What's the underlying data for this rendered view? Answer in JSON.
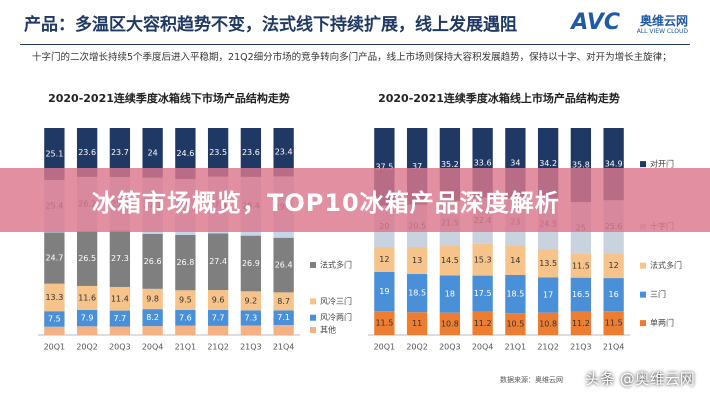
{
  "slide": {
    "title": "产品：多温区大容积趋势不变，法式线下持续扩展，线上发展遇阻",
    "subtitle": "十字门的二次增长持续5个季度后进入平稳期，21Q2细分市场的竞争转向多门产品，线上市场则保持大容积发展趋势，保持以十字、对开为增长主旋律；",
    "logo": "AVC",
    "logo_name": "奥维云网",
    "logo_sub": "ALL VIEW CLOUD",
    "banner": "冰箱市场概览，TOP10冰箱产品深度解析",
    "source": "数据来源：奥维云网",
    "watermark": "头条 @奥维云网"
  },
  "chart_data": [
    {
      "type": "stacked-bar",
      "title": "2020-2021连续季度冰箱线下市场产品结构走势",
      "categories": [
        "20Q1",
        "20Q2",
        "20Q3",
        "20Q4",
        "21Q1",
        "21Q2",
        "21Q3",
        "21Q4"
      ],
      "ylim": [
        0,
        100
      ],
      "series": [
        {
          "name": "其他",
          "color": "#f4b183",
          "values": [
            4.0,
            4.2,
            4.1,
            4.3,
            4.5,
            4.4,
            4.6,
            4.8
          ]
        },
        {
          "name": "风冷两门",
          "color": "#4a90d9",
          "values": [
            7.5,
            7.9,
            7.7,
            8.2,
            7.6,
            7.7,
            7.3,
            7.1
          ]
        },
        {
          "name": "风冷三门",
          "color": "#f6c38a",
          "values": [
            13.3,
            11.6,
            11.4,
            9.8,
            9.5,
            9.6,
            9.2,
            8.7
          ]
        },
        {
          "name": "法式多门",
          "color": "#7f7f7f",
          "values": [
            24.7,
            26.5,
            27.3,
            26.6,
            26.8,
            27.4,
            26.9,
            26.4
          ]
        },
        {
          "color": "#c5d5ea",
          "values": [
            25.4,
            26.2,
            25.8,
            27.1,
            27.0,
            27.4,
            28.4,
            29.6
          ]
        },
        {
          "color": "#1f3864",
          "values": [
            25.1,
            23.6,
            23.7,
            24.0,
            24.6,
            23.5,
            23.6,
            23.4
          ]
        }
      ]
    },
    {
      "type": "stacked-bar",
      "title": "2020-2021连续季度冰箱线上市场产品结构走势",
      "categories": [
        "20Q1",
        "20Q2",
        "20Q3",
        "20Q4",
        "21Q1",
        "21Q2",
        "21Q3",
        "21Q4"
      ],
      "ylim": [
        0,
        100
      ],
      "series": [
        {
          "name": "单两门",
          "color": "#ed7d31",
          "values": [
            11.5,
            11.0,
            10.8,
            11.2,
            10.5,
            10.8,
            11.2,
            11.5
          ]
        },
        {
          "name": "三门",
          "color": "#4a90d9",
          "values": [
            19.0,
            18.5,
            18.0,
            17.5,
            18.5,
            17.0,
            16.5,
            16.0
          ]
        },
        {
          "name": "法式多门",
          "color": "#f6c38a",
          "values": [
            12.0,
            13.0,
            14.5,
            15.3,
            14.0,
            13.5,
            11.5,
            12.0
          ]
        },
        {
          "name": "十字门",
          "color": "#c9d3e0",
          "values": [
            20.0,
            20.5,
            21.5,
            22.4,
            23.0,
            24.5,
            25.0,
            25.6
          ]
        },
        {
          "name": "对开门",
          "color": "#1f3864",
          "values": [
            37.5,
            37.0,
            35.2,
            33.6,
            34.0,
            34.2,
            35.8,
            34.9
          ]
        }
      ]
    }
  ]
}
